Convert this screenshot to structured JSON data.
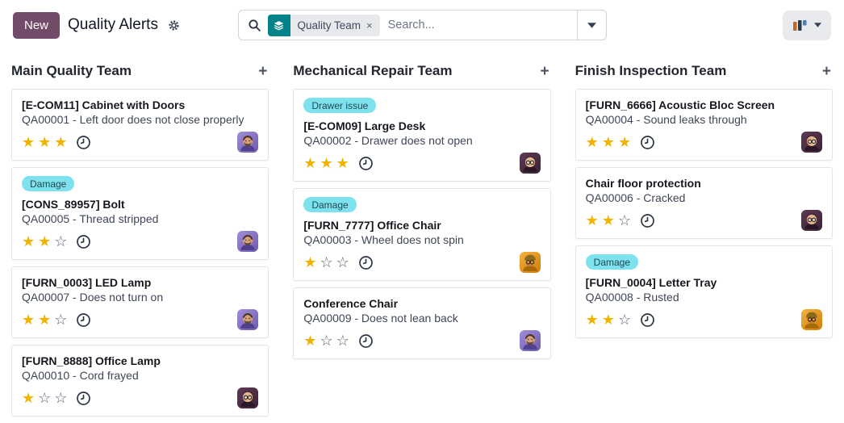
{
  "header": {
    "new_button": "New",
    "title": "Quality Alerts"
  },
  "search": {
    "facet_label": "Quality Team",
    "remove_glyph": "×",
    "placeholder": "Search..."
  },
  "icons": {
    "plus": "+",
    "star_filled": "★",
    "star_empty": "☆"
  },
  "colors": {
    "accent": "#714B67",
    "facet_teal": "#01838A",
    "tag_bg": "#7DE2ED",
    "star_gold": "#F0B400",
    "star_empty": "#566070"
  },
  "columns": [
    {
      "title": "Main Quality Team",
      "cards": [
        {
          "tag": null,
          "title": "[E-COM11] Cabinet with Doors",
          "subtitle": "QA00001 - Left door does not close properly",
          "stars_filled": 3,
          "stars_total": 3,
          "avatar": "man-beard-purple"
        },
        {
          "tag": "Damage",
          "title": "[CONS_89957] Bolt",
          "subtitle": "QA00005 - Thread stripped",
          "stars_filled": 2,
          "stars_total": 3,
          "avatar": "man-beard-purple"
        },
        {
          "tag": null,
          "title": "[FURN_0003] LED Lamp",
          "subtitle": "QA00007 - Does not turn on",
          "stars_filled": 2,
          "stars_total": 3,
          "avatar": "man-beard-purple"
        },
        {
          "tag": null,
          "title": "[FURN_8888] Office Lamp",
          "subtitle": "QA00010 - Cord frayed",
          "stars_filled": 1,
          "stars_total": 3,
          "avatar": "man-glasses-dark"
        }
      ]
    },
    {
      "title": "Mechanical Repair Team",
      "cards": [
        {
          "tag": "Drawer issue",
          "title": "[E-COM09] Large Desk",
          "subtitle": "QA00002 - Drawer does not open",
          "stars_filled": 3,
          "stars_total": 3,
          "avatar": "man-glasses-dark"
        },
        {
          "tag": "Damage",
          "title": "[FURN_7777] Office Chair",
          "subtitle": "QA00003 - Wheel does not spin",
          "stars_filled": 1,
          "stars_total": 3,
          "avatar": "person-hat-orange"
        },
        {
          "tag": null,
          "title": "Conference Chair",
          "subtitle": "QA00009 - Does not lean back",
          "stars_filled": 1,
          "stars_total": 3,
          "avatar": "man-beard-purple"
        }
      ]
    },
    {
      "title": "Finish Inspection Team",
      "cards": [
        {
          "tag": null,
          "title": "[FURN_6666] Acoustic Bloc Screen",
          "subtitle": "QA00004 - Sound leaks through",
          "stars_filled": 3,
          "stars_total": 3,
          "avatar": "man-glasses-dark"
        },
        {
          "tag": null,
          "title": "Chair floor protection",
          "subtitle": "QA00006 - Cracked",
          "stars_filled": 2,
          "stars_total": 3,
          "avatar": "man-glasses-dark"
        },
        {
          "tag": "Damage",
          "title": "[FURN_0004] Letter Tray",
          "subtitle": "QA00008 - Rusted",
          "stars_filled": 2,
          "stars_total": 3,
          "avatar": "person-hat-orange"
        }
      ]
    }
  ]
}
